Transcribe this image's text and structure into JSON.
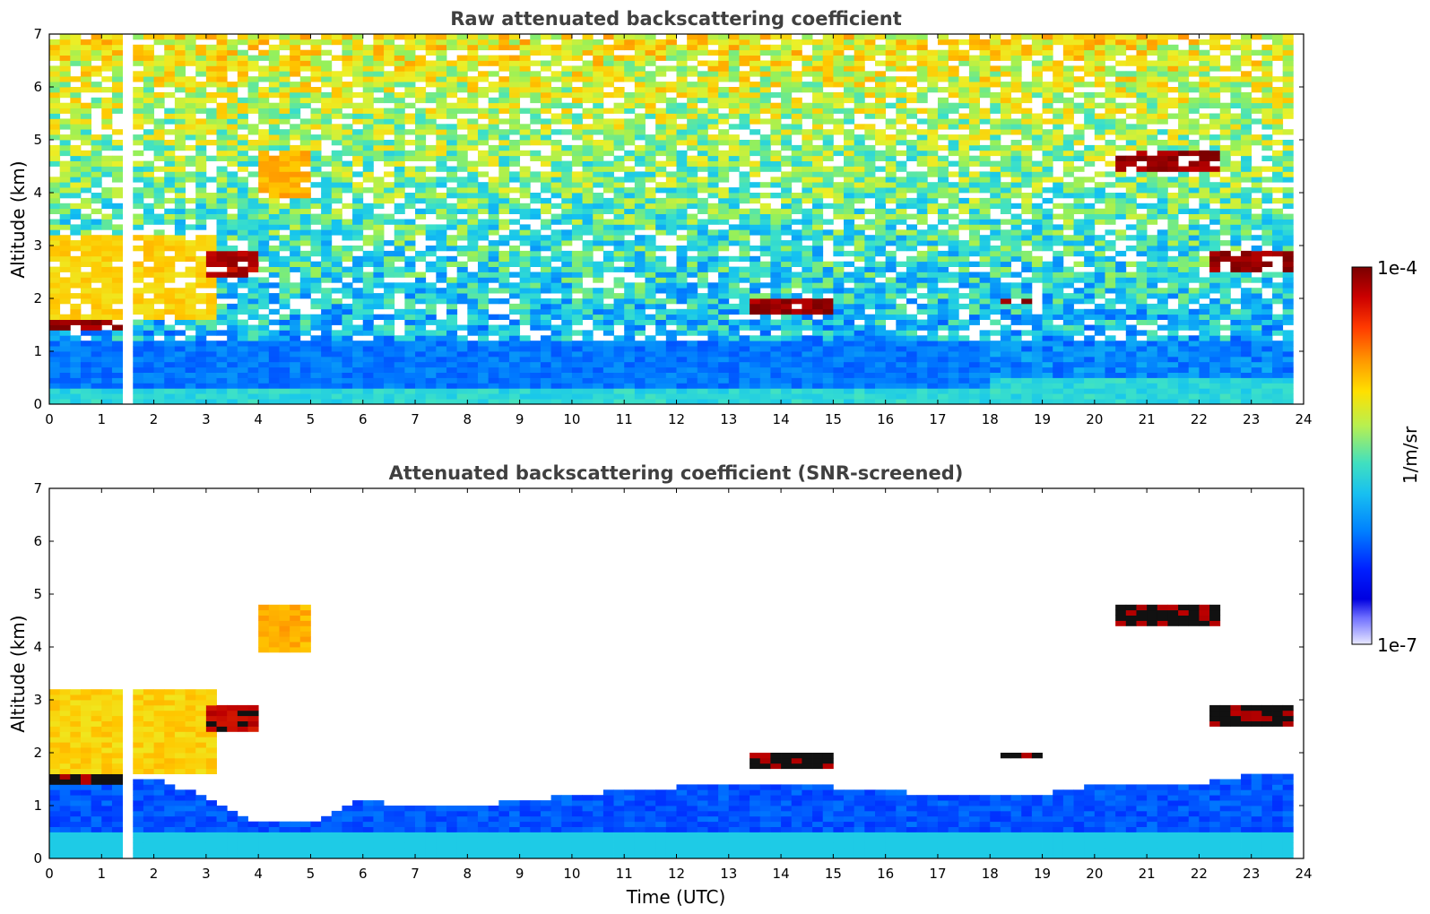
{
  "chart_data": [
    {
      "type": "heatmap",
      "title": "Raw attenuated backscattering coefficient",
      "xlabel": "",
      "ylabel": "Altitude (km)",
      "xlim": [
        0,
        24
      ],
      "ylim": [
        0,
        7
      ],
      "x_ticks": [
        "0",
        "1",
        "2",
        "3",
        "4",
        "5",
        "6",
        "7",
        "8",
        "9",
        "10",
        "11",
        "12",
        "13",
        "14",
        "15",
        "16",
        "17",
        "18",
        "19",
        "20",
        "21",
        "22",
        "23",
        "24"
      ],
      "y_ticks": [
        "0",
        "1",
        "2",
        "3",
        "4",
        "5",
        "6",
        "7"
      ],
      "data_gap": {
        "x_start": 1.45,
        "x_end": 1.55,
        "color": "#ffffff"
      },
      "features": [
        {
          "kind": "near-surface layer",
          "x": [
            0,
            24
          ],
          "y": [
            0,
            0.5
          ],
          "level": 0.45
        },
        {
          "kind": "boundary layer",
          "x": [
            0,
            18
          ],
          "y": [
            0.3,
            1.2
          ],
          "level": 0.3
        },
        {
          "kind": "residual layer",
          "x": [
            0,
            3.2
          ],
          "y": [
            1.6,
            3.2
          ],
          "level": 0.7
        },
        {
          "kind": "cloud layer",
          "x": [
            0,
            1.4
          ],
          "y": [
            1.4,
            1.6
          ],
          "level": 0.98
        },
        {
          "kind": "cloud layer",
          "x": [
            3.1,
            4.0
          ],
          "y": [
            2.4,
            2.9
          ],
          "level": 0.95
        },
        {
          "kind": "aerosol plume",
          "x": [
            4.0,
            5.0
          ],
          "y": [
            3.9,
            4.8
          ],
          "level": 0.75
        },
        {
          "kind": "cloud layer",
          "x": [
            13.4,
            14.9
          ],
          "y": [
            1.7,
            2.0
          ],
          "level": 0.98
        },
        {
          "kind": "cloud layer",
          "x": [
            18.2,
            19.0
          ],
          "y": [
            1.9,
            2.0
          ],
          "level": 0.98
        },
        {
          "kind": "cloud layer",
          "x": [
            20.4,
            22.3
          ],
          "y": [
            4.4,
            4.8
          ],
          "level": 0.98
        },
        {
          "kind": "cloud layer",
          "x": [
            22.3,
            23.8
          ],
          "y": [
            2.5,
            2.9
          ],
          "level": 0.98
        }
      ]
    },
    {
      "type": "heatmap",
      "title": "Attenuated backscattering coefficient (SNR-screened)",
      "xlabel": "Time (UTC)",
      "ylabel": "Altitude (km)",
      "xlim": [
        0,
        24
      ],
      "ylim": [
        0,
        7
      ],
      "x_ticks": [
        "0",
        "1",
        "2",
        "3",
        "4",
        "5",
        "6",
        "7",
        "8",
        "9",
        "10",
        "11",
        "12",
        "13",
        "14",
        "15",
        "16",
        "17",
        "18",
        "19",
        "20",
        "21",
        "22",
        "23",
        "24"
      ],
      "y_ticks": [
        "0",
        "1",
        "2",
        "3",
        "4",
        "5",
        "6",
        "7"
      ],
      "data_gap": {
        "x_start": 1.45,
        "x_end": 1.55,
        "color": "#ffffff"
      },
      "boundary_layer_top_km": [
        [
          0,
          1.6
        ],
        [
          1,
          1.6
        ],
        [
          2,
          1.5
        ],
        [
          3,
          1.2
        ],
        [
          4,
          0.7
        ],
        [
          5,
          0.65
        ],
        [
          6,
          1.1
        ],
        [
          7,
          0.95
        ],
        [
          8,
          1.0
        ],
        [
          9,
          1.1
        ],
        [
          10,
          1.2
        ],
        [
          11,
          1.3
        ],
        [
          12,
          1.35
        ],
        [
          13,
          1.4
        ],
        [
          14,
          1.4
        ],
        [
          15,
          1.35
        ],
        [
          16,
          1.3
        ],
        [
          17,
          1.2
        ],
        [
          18,
          1.2
        ],
        [
          19,
          1.2
        ],
        [
          20,
          1.4
        ],
        [
          21,
          1.4
        ],
        [
          22,
          1.4
        ],
        [
          23,
          1.6
        ],
        [
          23.8,
          1.6
        ]
      ]
    }
  ],
  "colorbar": {
    "max_label": "1e-4",
    "min_label": "1e-7",
    "unit_label": "1/m/sr",
    "colors": [
      "#800000",
      "#b40000",
      "#e61400",
      "#ff5000",
      "#ff8c00",
      "#ffc800",
      "#f0f020",
      "#b4f050",
      "#78f08c",
      "#3ce6c8",
      "#14c8f0",
      "#0096ff",
      "#0050ff",
      "#0014ff",
      "#0000e6",
      "#5a5aff",
      "#a0a0ff",
      "#e0e0ff"
    ]
  }
}
